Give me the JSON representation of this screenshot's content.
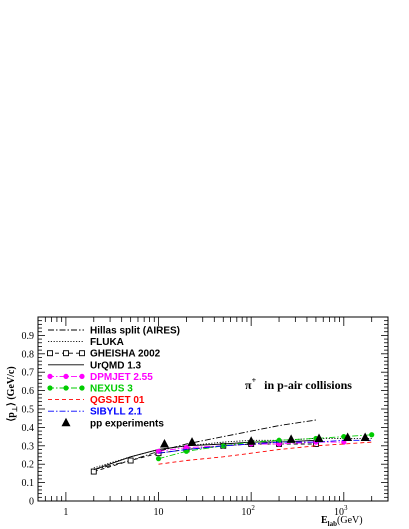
{
  "chart_data": {
    "type": "line",
    "title": "",
    "annotation": {
      "particle": "π",
      "charge": "+",
      "text": "in p-air collisions"
    },
    "ylabel": {
      "main": "⟨p",
      "sub": "⊥",
      "tail": "⟩ (GeV/c)"
    },
    "xlabel": {
      "main": "E",
      "sub": "lab",
      "tail": "(GeV)"
    },
    "x_scale": "log",
    "xlim": [
      0.5,
      3000
    ],
    "ylim": [
      0,
      1.0
    ],
    "x_ticks": [
      {
        "value": 1,
        "base": "1",
        "exp": ""
      },
      {
        "value": 10,
        "base": "10",
        "exp": ""
      },
      {
        "value": 100,
        "base": "10",
        "exp": "2"
      },
      {
        "value": 1000,
        "base": "10",
        "exp": "3"
      }
    ],
    "y_ticks": [
      "0",
      "0.1",
      "0.2",
      "0.3",
      "0.4",
      "0.5",
      "0.6",
      "0.7",
      "0.8",
      "0.9"
    ],
    "legend_position": "top-left",
    "series": [
      {
        "name": "Hillas split (AIRES)",
        "color": "#000000",
        "style": "dashdot",
        "marker": "none",
        "x": [
          2,
          5,
          10,
          20,
          50,
          100,
          200,
          500
        ],
        "y": [
          0.17,
          0.22,
          0.27,
          0.31,
          0.35,
          0.38,
          0.41,
          0.44
        ]
      },
      {
        "name": "FLUKA",
        "color": "#000000",
        "style": "dotted",
        "marker": "none",
        "x": [
          2,
          5,
          10,
          20,
          50,
          100,
          200,
          500,
          1000,
          2000
        ],
        "y": [
          0.18,
          0.24,
          0.28,
          0.3,
          0.32,
          0.33,
          0.33,
          0.34,
          0.34,
          0.34
        ]
      },
      {
        "name": "GHEISHA 2002",
        "color": "#000000",
        "style": "dashed",
        "marker": "open-square",
        "x": [
          2,
          5,
          10,
          20,
          50,
          100,
          200,
          500
        ],
        "y": [
          0.16,
          0.22,
          0.26,
          0.28,
          0.3,
          0.31,
          0.31,
          0.31
        ]
      },
      {
        "name": "UrQMD 1.3",
        "color": "#000000",
        "style": "solid",
        "marker": "none",
        "x": [
          2,
          5,
          10,
          20,
          50,
          100,
          200,
          500
        ],
        "y": [
          0.17,
          0.24,
          0.28,
          0.3,
          0.31,
          0.32,
          0.32,
          0.33
        ]
      },
      {
        "name": "DPMJET 2.55",
        "color": "#ff00ff",
        "style": "dashdot",
        "marker": "filled-circle",
        "x": [
          10,
          20,
          50,
          100,
          200,
          500,
          1000
        ],
        "y": [
          0.27,
          0.29,
          0.3,
          0.31,
          0.31,
          0.32,
          0.32
        ]
      },
      {
        "name": "NEXUS 3",
        "color": "#00cc00",
        "style": "dashdot",
        "marker": "filled-circle",
        "x": [
          10,
          20,
          50,
          100,
          200,
          500,
          1000,
          2000
        ],
        "y": [
          0.23,
          0.27,
          0.3,
          0.32,
          0.33,
          0.34,
          0.35,
          0.36
        ]
      },
      {
        "name": "QGSJET 01",
        "color": "#ff0000",
        "style": "dashed",
        "marker": "none",
        "x": [
          10,
          20,
          50,
          100,
          200,
          500,
          1000,
          2000
        ],
        "y": [
          0.2,
          0.22,
          0.24,
          0.26,
          0.28,
          0.3,
          0.31,
          0.32
        ]
      },
      {
        "name": "SIBYLL 2.1",
        "color": "#0000ff",
        "style": "dashdot",
        "marker": "none",
        "x": [
          10,
          20,
          50,
          100,
          200,
          500,
          1000,
          2000
        ],
        "y": [
          0.26,
          0.28,
          0.3,
          0.31,
          0.32,
          0.32,
          0.33,
          0.33
        ]
      },
      {
        "name": "pp experiments",
        "color": "#000000",
        "style": "none",
        "marker": "filled-triangle",
        "x": [
          11.6,
          23,
          100,
          270,
          540,
          1100,
          1700
        ],
        "y": [
          0.31,
          0.32,
          0.325,
          0.335,
          0.34,
          0.345,
          0.345
        ]
      }
    ]
  }
}
